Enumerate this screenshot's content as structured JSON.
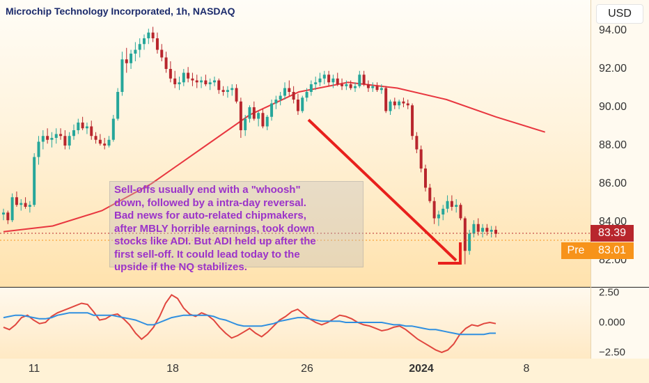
{
  "header": {
    "title": "Microchip Technology Incorporated, 1h, NASDAQ",
    "currency": "USD"
  },
  "price_axis": {
    "ticks": [
      "94.00",
      "92.00",
      "90.00",
      "88.00",
      "86.00",
      "84.00",
      "82.00"
    ],
    "last_price": "83.39",
    "premarket_label": "Pre",
    "premarket_price": "83.01"
  },
  "oscillator_axis": {
    "ticks": [
      "2.50",
      "0.000",
      "−2.50"
    ]
  },
  "time_axis": {
    "labels": [
      "11",
      "18",
      "26",
      "2024",
      "8"
    ]
  },
  "annotation": {
    "lines": [
      "Sell-offs usually end with a \"whoosh\"",
      "down, followed by a intra-day reversal.",
      "Bad news for auto-related chipmakers,",
      "after MBLY horrible earnings, took down",
      "stocks like ADI. But ADI held up after the",
      "first sell-off. It could lead today to the",
      "upside if the NQ stabilizes."
    ]
  },
  "colors": {
    "up": "#26a69a",
    "down": "#b8262d",
    "moving_average": "#e8363f",
    "arrow": "#e8201c",
    "osc_red": "#e0463e",
    "osc_blue": "#2f8fe0",
    "annotation_text": "#9b33c9"
  },
  "chart_data": {
    "type": "candlestick",
    "title": "Microchip Technology Incorporated, 1h, NASDAQ",
    "ylim": [
      81.0,
      95.0
    ],
    "ohlc": [
      [
        84.4,
        84.7,
        84.1,
        84.5
      ],
      [
        84.5,
        84.6,
        83.9,
        84.1
      ],
      [
        84.1,
        85.5,
        84.0,
        85.3
      ],
      [
        85.3,
        85.6,
        84.8,
        84.9
      ],
      [
        84.9,
        85.2,
        84.6,
        85.0
      ],
      [
        85.0,
        85.3,
        84.7,
        84.8
      ],
      [
        84.8,
        85.1,
        84.5,
        84.9
      ],
      [
        84.9,
        87.6,
        84.8,
        87.4
      ],
      [
        87.4,
        88.5,
        87.0,
        88.2
      ],
      [
        88.2,
        88.8,
        87.8,
        88.5
      ],
      [
        88.5,
        88.9,
        88.1,
        88.3
      ],
      [
        88.3,
        88.7,
        87.9,
        88.4
      ],
      [
        88.4,
        88.9,
        88.1,
        88.6
      ],
      [
        88.6,
        88.9,
        88.3,
        88.5
      ],
      [
        88.5,
        88.8,
        87.8,
        88.0
      ],
      [
        88.0,
        88.7,
        87.8,
        88.5
      ],
      [
        88.5,
        89.1,
        88.3,
        88.8
      ],
      [
        88.8,
        89.4,
        88.6,
        89.2
      ],
      [
        89.2,
        89.5,
        88.8,
        88.9
      ],
      [
        88.9,
        89.2,
        88.6,
        89.0
      ],
      [
        89.0,
        89.3,
        88.3,
        88.5
      ],
      [
        88.5,
        88.7,
        88.1,
        88.3
      ],
      [
        88.3,
        88.6,
        88.0,
        88.1
      ],
      [
        88.1,
        88.4,
        87.8,
        88.0
      ],
      [
        88.0,
        88.5,
        87.9,
        88.3
      ],
      [
        88.3,
        89.6,
        88.2,
        89.4
      ],
      [
        89.4,
        91.0,
        89.3,
        90.8
      ],
      [
        90.8,
        92.9,
        90.6,
        92.5
      ],
      [
        92.5,
        93.1,
        91.8,
        92.3
      ],
      [
        92.3,
        93.0,
        92.0,
        92.8
      ],
      [
        92.8,
        93.4,
        92.4,
        93.0
      ],
      [
        93.0,
        93.6,
        92.6,
        93.3
      ],
      [
        93.3,
        93.8,
        93.0,
        93.6
      ],
      [
        93.6,
        94.1,
        93.3,
        93.9
      ],
      [
        93.9,
        94.2,
        93.4,
        93.6
      ],
      [
        93.6,
        93.9,
        92.8,
        93.0
      ],
      [
        93.0,
        93.3,
        92.4,
        92.6
      ],
      [
        92.6,
        92.9,
        91.8,
        92.0
      ],
      [
        92.0,
        92.4,
        91.3,
        91.5
      ],
      [
        91.5,
        91.9,
        91.0,
        91.2
      ],
      [
        91.2,
        91.6,
        90.9,
        91.3
      ],
      [
        91.3,
        92.0,
        91.1,
        91.8
      ],
      [
        91.8,
        92.1,
        91.3,
        91.5
      ],
      [
        91.5,
        91.8,
        91.1,
        91.4
      ],
      [
        91.4,
        91.7,
        91.0,
        91.3
      ],
      [
        91.3,
        91.6,
        91.0,
        91.4
      ],
      [
        91.4,
        91.7,
        91.1,
        91.2
      ],
      [
        91.2,
        91.5,
        90.9,
        91.3
      ],
      [
        91.3,
        91.6,
        91.1,
        91.4
      ],
      [
        91.4,
        91.5,
        90.7,
        90.9
      ],
      [
        90.9,
        91.1,
        90.6,
        90.8
      ],
      [
        90.8,
        91.1,
        90.5,
        90.9
      ],
      [
        90.9,
        91.2,
        90.6,
        91.0
      ],
      [
        91.0,
        91.2,
        90.2,
        90.3
      ],
      [
        90.3,
        90.5,
        88.4,
        88.8
      ],
      [
        88.8,
        89.6,
        88.5,
        89.4
      ],
      [
        89.4,
        90.1,
        89.2,
        90.0
      ],
      [
        90.0,
        90.3,
        89.3,
        89.4
      ],
      [
        89.4,
        89.8,
        89.0,
        89.7
      ],
      [
        89.7,
        89.9,
        88.9,
        89.0
      ],
      [
        89.0,
        89.6,
        88.8,
        89.5
      ],
      [
        89.5,
        90.4,
        89.3,
        90.2
      ],
      [
        90.2,
        90.6,
        89.9,
        90.4
      ],
      [
        90.4,
        90.8,
        90.1,
        90.6
      ],
      [
        90.6,
        91.3,
        90.4,
        91.0
      ],
      [
        91.0,
        91.4,
        90.6,
        90.8
      ],
      [
        90.8,
        91.1,
        90.2,
        90.4
      ],
      [
        90.4,
        90.7,
        89.6,
        89.8
      ],
      [
        89.8,
        90.6,
        89.7,
        90.5
      ],
      [
        90.5,
        91.0,
        90.3,
        90.8
      ],
      [
        90.8,
        91.4,
        90.6,
        91.2
      ],
      [
        91.2,
        91.6,
        90.9,
        91.3
      ],
      [
        91.3,
        91.8,
        91.1,
        91.5
      ],
      [
        91.5,
        91.9,
        91.2,
        91.7
      ],
      [
        91.7,
        91.9,
        91.1,
        91.3
      ],
      [
        91.3,
        91.7,
        91.0,
        91.5
      ],
      [
        91.5,
        91.8,
        91.1,
        91.2
      ],
      [
        91.2,
        91.5,
        90.9,
        91.1
      ],
      [
        91.1,
        91.4,
        90.9,
        91.2
      ],
      [
        91.2,
        91.4,
        90.9,
        91.0
      ],
      [
        91.0,
        91.3,
        90.8,
        91.1
      ],
      [
        91.1,
        91.9,
        91.0,
        91.7
      ],
      [
        91.7,
        91.9,
        91.1,
        91.2
      ],
      [
        91.2,
        91.4,
        90.8,
        91.0
      ],
      [
        91.0,
        91.3,
        90.8,
        91.1
      ],
      [
        91.1,
        91.3,
        90.8,
        90.9
      ],
      [
        90.9,
        91.2,
        90.7,
        91.0
      ],
      [
        91.0,
        91.1,
        89.7,
        89.8
      ],
      [
        89.8,
        90.4,
        89.6,
        90.3
      ],
      [
        90.3,
        90.5,
        89.9,
        90.1
      ],
      [
        90.1,
        90.4,
        89.9,
        90.3
      ],
      [
        90.3,
        90.5,
        90.0,
        90.2
      ],
      [
        90.2,
        90.4,
        89.9,
        90.1
      ],
      [
        90.1,
        90.2,
        88.3,
        88.5
      ],
      [
        88.5,
        88.7,
        87.6,
        87.8
      ],
      [
        87.8,
        88.0,
        86.6,
        86.8
      ],
      [
        86.8,
        87.0,
        85.6,
        85.8
      ],
      [
        85.8,
        86.0,
        85.0,
        85.1
      ],
      [
        85.1,
        85.3,
        83.9,
        84.2
      ],
      [
        84.2,
        84.6,
        83.8,
        84.4
      ],
      [
        84.4,
        84.9,
        84.1,
        84.7
      ],
      [
        84.7,
        85.4,
        84.5,
        85.1
      ],
      [
        85.1,
        85.4,
        84.6,
        84.8
      ],
      [
        84.8,
        85.2,
        84.5,
        84.9
      ],
      [
        84.9,
        85.0,
        84.1,
        84.2
      ],
      [
        84.2,
        84.3,
        81.8,
        82.5
      ],
      [
        82.5,
        83.6,
        82.3,
        83.4
      ],
      [
        83.4,
        84.1,
        83.2,
        83.9
      ],
      [
        83.9,
        84.2,
        83.3,
        83.5
      ],
      [
        83.5,
        83.9,
        83.2,
        83.7
      ],
      [
        83.7,
        83.9,
        83.3,
        83.5
      ],
      [
        83.5,
        83.8,
        83.2,
        83.6
      ],
      [
        83.6,
        83.8,
        83.2,
        83.39
      ]
    ],
    "moving_average": [
      [
        0,
        83.5
      ],
      [
        0.1,
        83.8
      ],
      [
        0.2,
        84.6
      ],
      [
        0.3,
        86.0
      ],
      [
        0.4,
        87.8
      ],
      [
        0.5,
        89.6
      ],
      [
        0.6,
        90.8
      ],
      [
        0.7,
        91.3
      ],
      [
        0.8,
        91.0
      ],
      [
        0.9,
        90.4
      ],
      [
        1.0,
        89.5
      ],
      [
        1.1,
        88.7
      ]
    ],
    "oscillator": {
      "ylim": [
        -3.0,
        3.5
      ],
      "red": [
        -0.4,
        -0.6,
        -0.2,
        0.4,
        0.6,
        0.2,
        -0.1,
        0.0,
        0.5,
        0.8,
        1.0,
        1.2,
        1.4,
        1.6,
        1.5,
        0.9,
        0.2,
        0.3,
        0.6,
        0.7,
        0.3,
        -0.2,
        -0.9,
        -1.4,
        -1.0,
        -0.4,
        0.5,
        1.6,
        2.3,
        2.0,
        1.2,
        0.7,
        0.5,
        0.8,
        0.6,
        0.2,
        -0.4,
        -0.9,
        -1.3,
        -1.1,
        -0.8,
        -0.5,
        -0.9,
        -1.2,
        -0.8,
        -0.3,
        0.2,
        0.5,
        0.9,
        1.1,
        0.7,
        0.3,
        0.0,
        -0.2,
        0.0,
        0.3,
        0.6,
        0.5,
        0.3,
        0.0,
        -0.2,
        -0.3,
        -0.5,
        -0.7,
        -0.6,
        -0.4,
        -0.3,
        -0.6,
        -1.0,
        -1.4,
        -1.7,
        -2.0,
        -2.3,
        -2.5,
        -2.3,
        -1.8,
        -1.0,
        -0.5,
        -0.2,
        -0.3,
        -0.1,
        0.0,
        -0.1
      ],
      "blue": [
        0.4,
        0.5,
        0.6,
        0.6,
        0.5,
        0.4,
        0.3,
        0.3,
        0.4,
        0.6,
        0.7,
        0.8,
        0.8,
        0.8,
        0.8,
        0.6,
        0.6,
        0.6,
        0.6,
        0.5,
        0.4,
        0.3,
        0.2,
        0.0,
        -0.2,
        -0.2,
        0.0,
        0.2,
        0.4,
        0.5,
        0.6,
        0.6,
        0.6,
        0.6,
        0.6,
        0.5,
        0.3,
        0.2,
        0.0,
        -0.2,
        -0.3,
        -0.3,
        -0.3,
        -0.3,
        -0.2,
        -0.1,
        0.1,
        0.2,
        0.3,
        0.4,
        0.4,
        0.3,
        0.2,
        0.1,
        0.1,
        0.1,
        0.1,
        0.0,
        0.0,
        0.0,
        0.0,
        0.0,
        0.0,
        0.0,
        -0.1,
        -0.2,
        -0.2,
        -0.3,
        -0.3,
        -0.4,
        -0.5,
        -0.6,
        -0.6,
        -0.7,
        -0.8,
        -0.9,
        -1.0,
        -1.0,
        -1.0,
        -1.0,
        -1.0,
        -0.9,
        -0.9
      ]
    }
  }
}
